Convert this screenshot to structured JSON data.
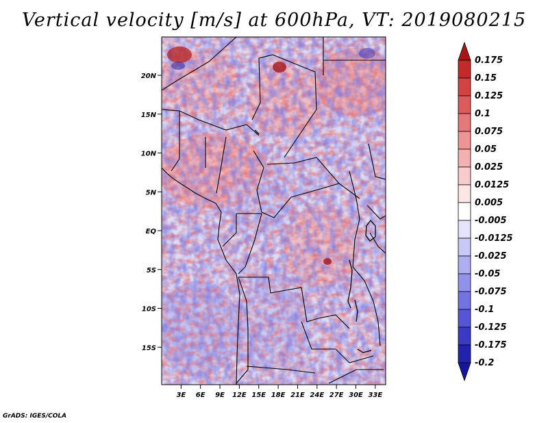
{
  "title": "Vertical velocity [m/s] at 600hPa, VT: 2019080215",
  "credit": "GrADS: IGES/COLA",
  "map": {
    "lat_labels": [
      "20N",
      "15N",
      "10N",
      "5N",
      "EQ",
      "5S",
      "10S",
      "15S"
    ],
    "lon_labels": [
      "3E",
      "6E",
      "9E",
      "12E",
      "15E",
      "18E",
      "21E",
      "24E",
      "27E",
      "30E",
      "33E"
    ],
    "lat_values": [
      20,
      15,
      10,
      5,
      0,
      -5,
      -10,
      -15
    ],
    "lon_values": [
      3,
      6,
      9,
      12,
      15,
      18,
      21,
      24,
      27,
      30,
      33
    ]
  },
  "colorbar": {
    "labels": [
      "0.175",
      "0.15",
      "0.125",
      "0.1",
      "0.075",
      "0.05",
      "0.025",
      "0.0125",
      "0.005",
      "-0.005",
      "-0.0125",
      "-0.025",
      "-0.05",
      "-0.075",
      "-0.1",
      "-0.125",
      "-0.175",
      "-0.2"
    ],
    "colors": [
      "#a81515",
      "#c42a2a",
      "#d24444",
      "#dc5c5c",
      "#e57878",
      "#ed9494",
      "#f3b1b1",
      "#f8cccc",
      "#fce6e6",
      "#ffffff",
      "#e4e4fb",
      "#c9c9f6",
      "#aeaef0",
      "#9292ea",
      "#7474e0",
      "#5656d4",
      "#3a3ac4",
      "#2222aa",
      "#1515a0"
    ]
  }
}
